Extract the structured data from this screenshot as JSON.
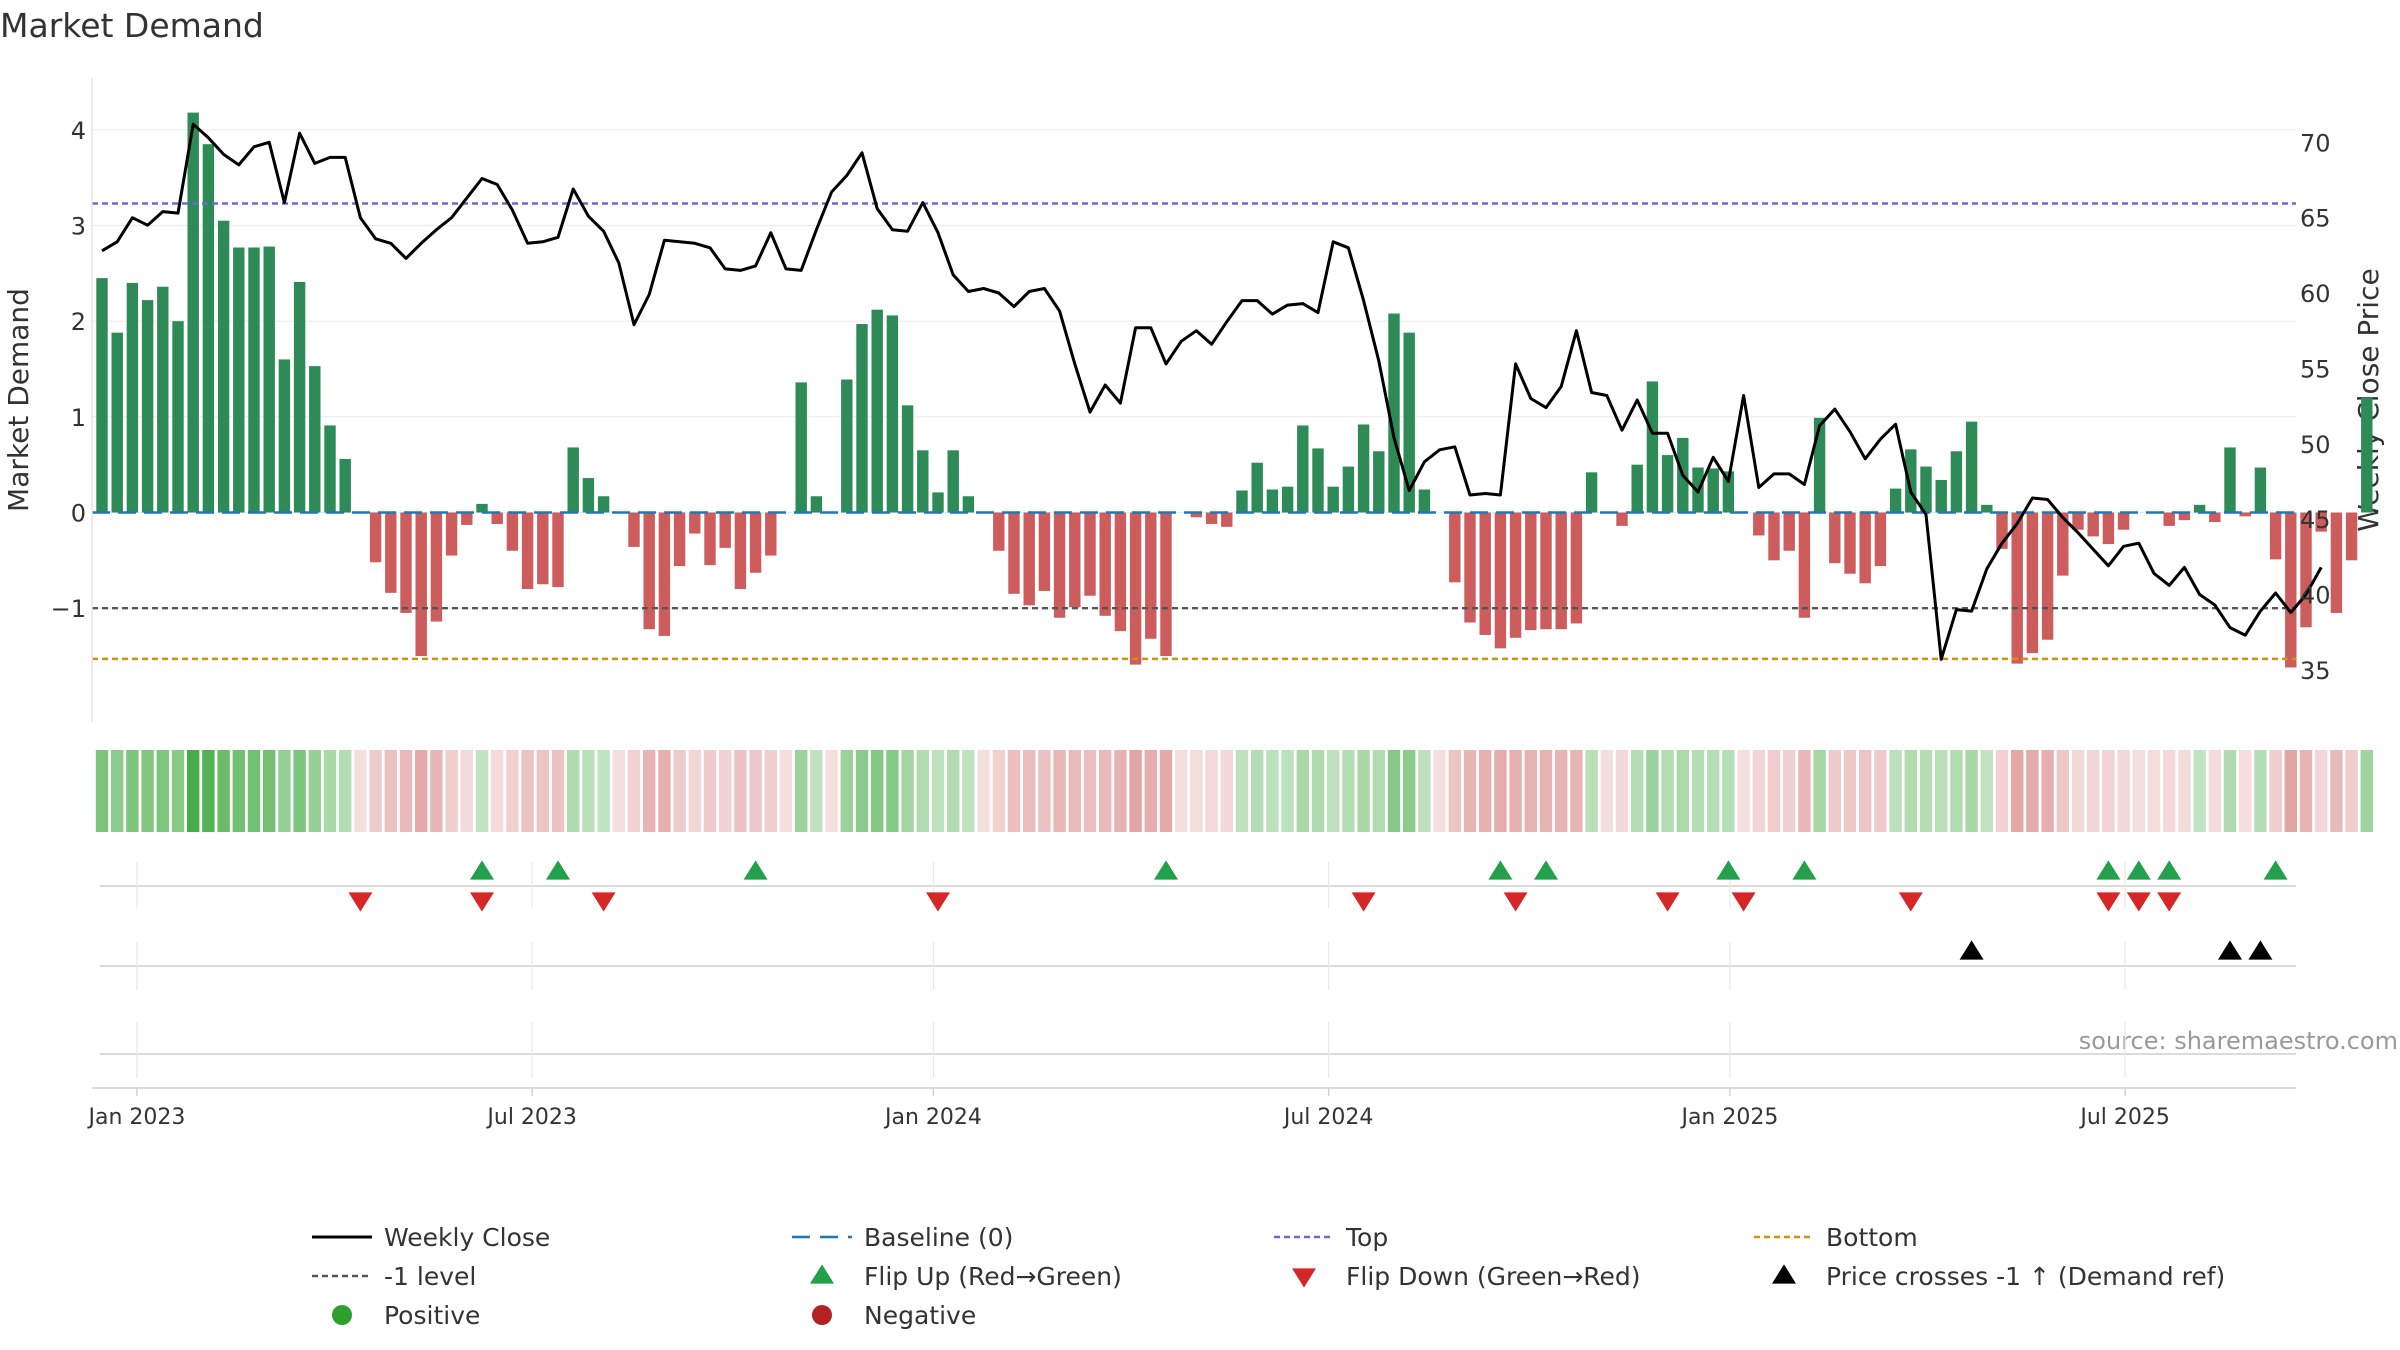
{
  "chart_data": {
    "type": "bar",
    "title": "Market Demand",
    "ylabel": "Market Demand",
    "y2label": "Weekly Close Price",
    "ylim": [
      -1.96,
      4.5
    ],
    "y2lim": [
      33,
      74
    ],
    "yticks": [
      4,
      3,
      2,
      1,
      0,
      -1
    ],
    "ytick_labels": [
      "4",
      "3",
      "2",
      "1",
      "0",
      "−1"
    ],
    "y2ticks": [
      70,
      65,
      60,
      55,
      50,
      45,
      40,
      35
    ],
    "x_tick_labels": [
      "Jan 2023",
      "Jul 2023",
      "Jan 2024",
      "Jul 2024",
      "Jan 2025",
      "Jul 2025"
    ],
    "x_tick_index": [
      2.3,
      28.3,
      54.7,
      80.7,
      107.1,
      133.1
    ],
    "reference_lines": {
      "baseline": 0,
      "top": 3.23,
      "minus_one": -1,
      "bottom": -1.53
    },
    "demand": [
      2.45,
      1.88,
      2.4,
      2.22,
      2.36,
      2.0,
      4.18,
      3.85,
      3.05,
      2.77,
      2.77,
      2.78,
      1.6,
      2.41,
      1.53,
      0.91,
      0.56,
      0,
      -0.52,
      -0.84,
      -1.05,
      -1.5,
      -1.14,
      -0.45,
      -0.13,
      0.09,
      -0.12,
      -0.4,
      -0.8,
      -0.75,
      -0.78,
      0.68,
      0.36,
      0.17,
      0,
      -0.36,
      -1.22,
      -1.29,
      -0.56,
      -0.22,
      -0.55,
      -0.37,
      -0.8,
      -0.63,
      -0.45,
      0,
      1.36,
      0.17,
      0,
      1.39,
      1.97,
      2.12,
      2.06,
      1.12,
      0.65,
      0.21,
      0.65,
      0.17,
      0,
      -0.4,
      -0.85,
      -0.97,
      -0.82,
      -1.1,
      -0.99,
      -0.87,
      -1.08,
      -1.24,
      -1.59,
      -1.32,
      -1.5,
      0,
      -0.05,
      -0.12,
      -0.15,
      0.23,
      0.52,
      0.24,
      0.27,
      0.91,
      0.67,
      0.27,
      0.48,
      0.92,
      0.64,
      2.08,
      1.88,
      0.24,
      0,
      -0.73,
      -1.15,
      -1.28,
      -1.42,
      -1.31,
      -1.23,
      -1.22,
      -1.22,
      -1.16,
      0.42,
      0,
      -0.14,
      0.5,
      1.37,
      0.6,
      0.78,
      0.47,
      0.46,
      0.43,
      0,
      -0.24,
      -0.5,
      -0.4,
      -1.1,
      0.99,
      -0.53,
      -0.64,
      -0.74,
      -0.56,
      0.25,
      0.66,
      0.48,
      0.34,
      0.64,
      0.95,
      0.08,
      -0.38,
      -1.58,
      -1.47,
      -1.33,
      -0.66,
      -0.18,
      -0.25,
      -0.33,
      -0.18,
      0,
      0,
      -0.14,
      -0.08,
      0.08,
      -0.1,
      0.68,
      -0.04,
      0.47,
      -0.49,
      -1.62,
      -1.2,
      -0.2,
      -1.05,
      -0.5,
      1.2
    ],
    "close": [
      62.8,
      63.4,
      65.0,
      64.5,
      65.4,
      65.3,
      71.2,
      70.3,
      69.2,
      68.5,
      69.7,
      70.0,
      66.0,
      70.6,
      68.6,
      69.0,
      69.0,
      65.0,
      63.6,
      63.3,
      62.3,
      63.3,
      64.2,
      65.0,
      66.3,
      67.6,
      67.2,
      65.5,
      63.3,
      63.4,
      63.7,
      66.9,
      65.1,
      64.1,
      62.0,
      57.9,
      59.9,
      63.5,
      63.4,
      63.3,
      63.0,
      61.6,
      61.5,
      61.8,
      64.0,
      61.6,
      61.5,
      64.2,
      66.7,
      67.8,
      69.3,
      65.6,
      64.2,
      64.1,
      66.0,
      64.0,
      61.2,
      60.1,
      60.3,
      60.0,
      59.1,
      60.1,
      60.3,
      58.8,
      55.3,
      52.1,
      53.9,
      52.7,
      57.7,
      57.7,
      55.3,
      56.8,
      57.5,
      56.6,
      58.1,
      59.5,
      59.5,
      58.6,
      59.2,
      59.3,
      58.7,
      63.4,
      63.0,
      59.5,
      55.5,
      50.4,
      46.9,
      48.8,
      49.6,
      49.8,
      46.6,
      46.7,
      46.6,
      55.3,
      53.0,
      52.4,
      53.8,
      57.5,
      53.4,
      53.2,
      50.9,
      52.9,
      50.7,
      50.7,
      47.9,
      46.8,
      49.1,
      47.5,
      53.2,
      47.1,
      48.0,
      48.0,
      47.3,
      51.2,
      52.3,
      50.8,
      49.0,
      50.3,
      51.3,
      46.8,
      45.3,
      35.7,
      39.0,
      38.9,
      41.7,
      43.4,
      44.7,
      46.4,
      46.3,
      45.1,
      44.1,
      43.0,
      41.9,
      43.2,
      43.4,
      41.4,
      40.6,
      41.8,
      40.0,
      39.3,
      37.8,
      37.3,
      38.9,
      40.1,
      38.8,
      40.0,
      41.8
    ],
    "flip_up_index": [
      25,
      30,
      43,
      70,
      92,
      95,
      107,
      112,
      132,
      134,
      136,
      143
    ],
    "flip_down_index": [
      17,
      25,
      33,
      55,
      83,
      93,
      103,
      108,
      119,
      132,
      134,
      136
    ],
    "price_cross_index": [
      123,
      140,
      142
    ],
    "source_text": "source: sharemaestro.com",
    "legend": [
      {
        "label": "Weekly Close"
      },
      {
        "label": "Baseline (0)"
      },
      {
        "label": "Top"
      },
      {
        "label": "Bottom"
      },
      {
        "label": "-1 level"
      },
      {
        "label": "Flip Up (Red→Green)"
      },
      {
        "label": "Flip Down (Green→Red)"
      },
      {
        "label": "Price crosses -1 ↑ (Demand ref)"
      },
      {
        "label": "Positive"
      },
      {
        "label": "Negative"
      }
    ],
    "colors": {
      "positive": "#2e8b57",
      "negative": "#cd5c5c",
      "close": "#000000",
      "baseline": "#1f77b4",
      "top": "#6a6ad0",
      "bottom": "#d4900a",
      "minus_one": "#555555",
      "flip_up": "#22a04b",
      "flip_down": "#d62728",
      "cross": "#000000",
      "positive_marker": "#2ca02c",
      "negative_marker": "#b22222"
    }
  }
}
